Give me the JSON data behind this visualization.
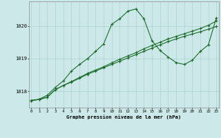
{
  "title": "Graphe pression niveau de la mer (hPa)",
  "bg_color": "#cce8e8",
  "grid_color": "#aad0d0",
  "line_color": "#1a6b2a",
  "x_ticks": [
    0,
    1,
    2,
    3,
    4,
    5,
    6,
    7,
    8,
    9,
    10,
    11,
    12,
    13,
    14,
    15,
    16,
    17,
    18,
    19,
    20,
    21,
    22,
    23
  ],
  "y_ticks": [
    1018,
    1019,
    1020
  ],
  "ylim": [
    1017.5,
    1020.75
  ],
  "xlim": [
    -0.3,
    23.3
  ],
  "series1_y": [
    1017.72,
    1017.75,
    1017.82,
    1018.05,
    1018.18,
    1018.28,
    1018.4,
    1018.52,
    1018.62,
    1018.72,
    1018.82,
    1018.92,
    1019.02,
    1019.12,
    1019.22,
    1019.32,
    1019.42,
    1019.52,
    1019.6,
    1019.68,
    1019.75,
    1019.82,
    1019.9,
    1019.98
  ],
  "series2_y": [
    1017.72,
    1017.75,
    1017.82,
    1018.05,
    1018.18,
    1018.3,
    1018.42,
    1018.55,
    1018.65,
    1018.75,
    1018.87,
    1018.98,
    1019.08,
    1019.18,
    1019.3,
    1019.4,
    1019.5,
    1019.6,
    1019.68,
    1019.76,
    1019.84,
    1019.92,
    1020.02,
    1020.15
  ],
  "series3_y": [
    1017.72,
    1017.76,
    1017.88,
    1018.12,
    1018.32,
    1018.62,
    1018.82,
    1019.0,
    1019.22,
    1019.45,
    1020.05,
    1020.22,
    1020.45,
    1020.52,
    1020.22,
    1019.55,
    1019.25,
    1019.05,
    1018.88,
    1018.82,
    1018.95,
    1019.22,
    1019.42,
    1020.25
  ]
}
